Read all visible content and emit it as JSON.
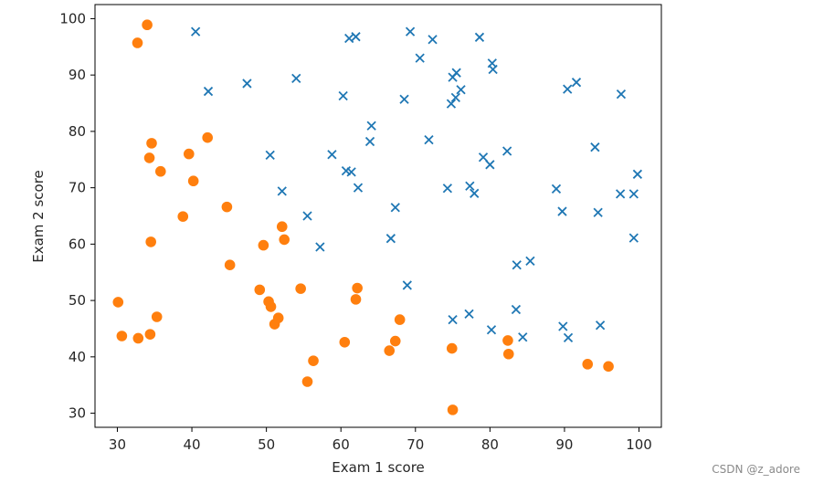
{
  "chart_data": {
    "type": "scatter",
    "xlabel": "Exam 1 score",
    "ylabel": "Exam 2 score",
    "xlim": [
      27,
      103
    ],
    "ylim": [
      27.5,
      102.5
    ],
    "xticks": [
      30,
      40,
      50,
      60,
      70,
      80,
      90,
      100
    ],
    "yticks": [
      30,
      40,
      50,
      60,
      70,
      80,
      90,
      100
    ],
    "grid": false,
    "series": [
      {
        "marker": "x",
        "color": "#1f77b4",
        "points": [
          [
            40.5,
            97.7
          ],
          [
            42.2,
            87.1
          ],
          [
            47.4,
            88.5
          ],
          [
            54.0,
            89.4
          ],
          [
            60.3,
            86.3
          ],
          [
            61.1,
            96.5
          ],
          [
            62.0,
            96.8
          ],
          [
            69.3,
            97.7
          ],
          [
            70.6,
            93.0
          ],
          [
            72.3,
            96.3
          ],
          [
            78.6,
            96.7
          ],
          [
            80.3,
            92.1
          ],
          [
            80.4,
            91.0
          ],
          [
            75.0,
            89.6
          ],
          [
            75.5,
            90.4
          ],
          [
            76.1,
            87.4
          ],
          [
            75.4,
            86.0
          ],
          [
            74.8,
            84.9
          ],
          [
            68.5,
            85.7
          ],
          [
            64.1,
            81.0
          ],
          [
            63.9,
            78.2
          ],
          [
            71.8,
            78.5
          ],
          [
            50.5,
            75.8
          ],
          [
            58.8,
            75.9
          ],
          [
            60.7,
            73.0
          ],
          [
            61.4,
            72.8
          ],
          [
            62.3,
            70.0
          ],
          [
            52.1,
            69.4
          ],
          [
            67.3,
            66.5
          ],
          [
            55.5,
            65.0
          ],
          [
            57.2,
            59.5
          ],
          [
            66.7,
            61.0
          ],
          [
            68.9,
            52.7
          ],
          [
            74.3,
            69.9
          ],
          [
            77.3,
            70.3
          ],
          [
            77.9,
            69.0
          ],
          [
            79.1,
            75.4
          ],
          [
            80.0,
            74.1
          ],
          [
            82.3,
            76.5
          ],
          [
            88.9,
            69.8
          ],
          [
            89.7,
            65.8
          ],
          [
            90.4,
            87.5
          ],
          [
            91.6,
            88.7
          ],
          [
            97.6,
            86.6
          ],
          [
            94.1,
            77.2
          ],
          [
            97.5,
            68.9
          ],
          [
            99.3,
            68.9
          ],
          [
            99.8,
            72.4
          ],
          [
            94.5,
            65.6
          ],
          [
            99.3,
            61.1
          ],
          [
            83.6,
            56.3
          ],
          [
            85.4,
            57.0
          ],
          [
            83.5,
            48.4
          ],
          [
            84.4,
            43.5
          ],
          [
            77.2,
            47.6
          ],
          [
            75.0,
            46.6
          ],
          [
            80.2,
            44.8
          ],
          [
            89.8,
            45.4
          ],
          [
            90.5,
            43.4
          ],
          [
            94.8,
            45.6
          ]
        ]
      },
      {
        "marker": "o",
        "color": "#ff7f0e",
        "points": [
          [
            34.0,
            98.9
          ],
          [
            32.7,
            95.7
          ],
          [
            34.6,
            77.9
          ],
          [
            34.3,
            75.3
          ],
          [
            35.8,
            72.9
          ],
          [
            39.6,
            76.0
          ],
          [
            40.2,
            71.2
          ],
          [
            42.1,
            78.9
          ],
          [
            38.8,
            64.9
          ],
          [
            44.7,
            66.6
          ],
          [
            34.5,
            60.4
          ],
          [
            45.1,
            56.3
          ],
          [
            49.6,
            59.8
          ],
          [
            52.1,
            63.1
          ],
          [
            52.4,
            60.8
          ],
          [
            49.1,
            51.9
          ],
          [
            50.3,
            49.8
          ],
          [
            50.6,
            48.9
          ],
          [
            51.1,
            45.8
          ],
          [
            51.6,
            46.9
          ],
          [
            54.6,
            52.1
          ],
          [
            62.2,
            52.2
          ],
          [
            62.0,
            50.2
          ],
          [
            60.5,
            42.6
          ],
          [
            56.3,
            39.3
          ],
          [
            55.5,
            35.6
          ],
          [
            30.1,
            49.7
          ],
          [
            30.6,
            43.7
          ],
          [
            32.8,
            43.3
          ],
          [
            34.4,
            44.0
          ],
          [
            35.3,
            47.1
          ],
          [
            66.5,
            41.1
          ],
          [
            67.3,
            42.8
          ],
          [
            67.9,
            46.6
          ],
          [
            74.9,
            41.5
          ],
          [
            82.4,
            42.9
          ],
          [
            82.5,
            40.5
          ],
          [
            93.1,
            38.7
          ],
          [
            95.9,
            38.3
          ],
          [
            75.0,
            30.6
          ]
        ]
      }
    ]
  },
  "watermark": "CSDN @z_adore"
}
